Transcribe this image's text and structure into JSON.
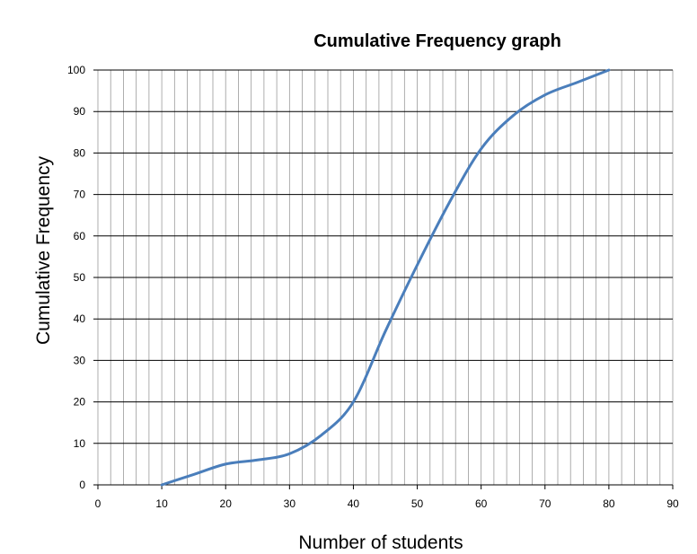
{
  "chart_data": {
    "type": "line",
    "title": "Cumulative Frequency graph",
    "xlabel": "Number of students",
    "ylabel": "Cumulative Frequency",
    "xlim": [
      0,
      90
    ],
    "ylim": [
      0,
      100
    ],
    "x_ticks": [
      0,
      10,
      20,
      30,
      40,
      50,
      60,
      70,
      80,
      90
    ],
    "y_ticks": [
      0,
      10,
      20,
      30,
      40,
      50,
      60,
      70,
      80,
      90,
      100
    ],
    "minor_x_step": 2,
    "grid": true,
    "legend": "none",
    "line_color": "#4a7ebb",
    "series": [
      {
        "x": [
          10,
          15,
          20,
          25,
          30,
          35,
          40,
          45,
          50,
          55,
          60,
          65,
          70,
          75,
          80
        ],
        "values": [
          0,
          2.5,
          5,
          6,
          7.5,
          12,
          20,
          37,
          53,
          68,
          81,
          89,
          94,
          97,
          100
        ]
      }
    ]
  }
}
